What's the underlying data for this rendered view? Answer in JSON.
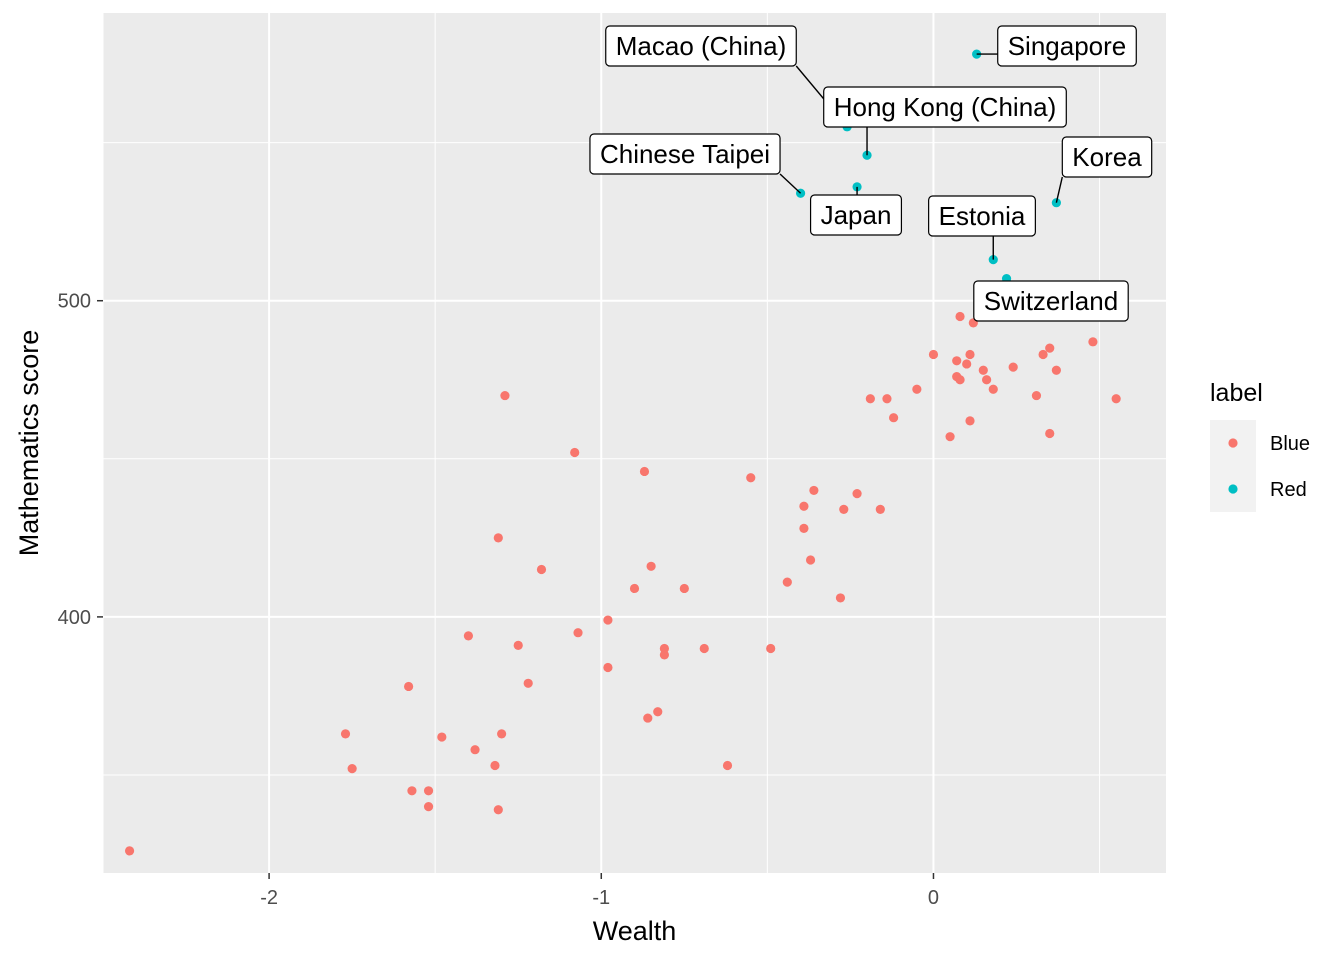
{
  "chart_data": {
    "type": "scatter",
    "title": "",
    "xlabel": "Wealth",
    "ylabel": "Mathematics score",
    "xlim": [
      -2.5,
      0.7
    ],
    "ylim": [
      319,
      591
    ],
    "x_ticks": [
      -2,
      -1,
      0
    ],
    "x_tick_labels": [
      "-2",
      "-1",
      "0"
    ],
    "y_ticks": [
      400,
      500
    ],
    "y_tick_labels": [
      "400",
      "500"
    ],
    "grid": true,
    "panel_background": "#ebebeb",
    "legend": {
      "title": "label",
      "position": "right",
      "entries": [
        {
          "name": "Blue",
          "color": "#f8766d"
        },
        {
          "name": "Red",
          "color": "#00bfc4"
        }
      ]
    },
    "series": [
      {
        "name": "Blue",
        "color": "#f8766d",
        "points": [
          [
            -2.42,
            326
          ],
          [
            -1.77,
            363
          ],
          [
            -1.75,
            352
          ],
          [
            -1.58,
            378
          ],
          [
            -1.57,
            345
          ],
          [
            -1.52,
            345
          ],
          [
            -1.52,
            340
          ],
          [
            -1.48,
            362
          ],
          [
            -1.4,
            394
          ],
          [
            -1.38,
            358
          ],
          [
            -1.32,
            353
          ],
          [
            -1.31,
            425
          ],
          [
            -1.3,
            363
          ],
          [
            -1.29,
            470
          ],
          [
            -1.31,
            339
          ],
          [
            -1.25,
            391
          ],
          [
            -1.22,
            379
          ],
          [
            -1.18,
            415
          ],
          [
            -1.08,
            452
          ],
          [
            -1.07,
            395
          ],
          [
            -0.98,
            399
          ],
          [
            -0.98,
            384
          ],
          [
            -0.9,
            409
          ],
          [
            -0.87,
            446
          ],
          [
            -0.86,
            368
          ],
          [
            -0.85,
            416
          ],
          [
            -0.83,
            370
          ],
          [
            -0.81,
            390
          ],
          [
            -0.81,
            388
          ],
          [
            -0.75,
            409
          ],
          [
            -0.69,
            390
          ],
          [
            -0.62,
            353
          ],
          [
            -0.55,
            444
          ],
          [
            -0.49,
            390
          ],
          [
            -0.44,
            411
          ],
          [
            -0.39,
            435
          ],
          [
            -0.39,
            428
          ],
          [
            -0.37,
            418
          ],
          [
            -0.36,
            440
          ],
          [
            -0.28,
            406
          ],
          [
            -0.27,
            434
          ],
          [
            -0.23,
            439
          ],
          [
            -0.19,
            469
          ],
          [
            -0.16,
            434
          ],
          [
            -0.14,
            469
          ],
          [
            -0.12,
            463
          ],
          [
            -0.05,
            472
          ],
          [
            0.0,
            483
          ],
          [
            0.05,
            457
          ],
          [
            0.07,
            481
          ],
          [
            0.07,
            476
          ],
          [
            0.08,
            475
          ],
          [
            0.1,
            480
          ],
          [
            0.11,
            483
          ],
          [
            0.11,
            462
          ],
          [
            0.15,
            478
          ],
          [
            0.16,
            475
          ],
          [
            0.18,
            472
          ],
          [
            0.24,
            479
          ],
          [
            0.31,
            470
          ],
          [
            0.33,
            483
          ],
          [
            0.35,
            458
          ],
          [
            0.35,
            485
          ],
          [
            0.37,
            478
          ],
          [
            0.48,
            487
          ],
          [
            0.55,
            469
          ],
          [
            0.08,
            495
          ],
          [
            0.12,
            493
          ]
        ]
      },
      {
        "name": "Red",
        "color": "#00bfc4",
        "points": [
          [
            0.13,
            578
          ],
          [
            -0.26,
            555
          ],
          [
            -0.2,
            546
          ],
          [
            -0.4,
            534
          ],
          [
            -0.23,
            536
          ],
          [
            0.37,
            531
          ],
          [
            0.18,
            513
          ],
          [
            0.22,
            507
          ]
        ]
      }
    ],
    "annotations": [
      {
        "text": "Singapore",
        "x": 0.13,
        "y": 578
      },
      {
        "text": "Macao (China)",
        "x": -0.26,
        "y": 555
      },
      {
        "text": "Hong Kong (China)",
        "x": -0.2,
        "y": 546
      },
      {
        "text": "Chinese Taipei",
        "x": -0.4,
        "y": 534
      },
      {
        "text": "Korea",
        "x": 0.37,
        "y": 531
      },
      {
        "text": "Japan",
        "x": -0.23,
        "y": 536
      },
      {
        "text": "Estonia",
        "x": 0.18,
        "y": 513
      },
      {
        "text": "Switzerland",
        "x": 0.12,
        "y": 493
      }
    ]
  }
}
